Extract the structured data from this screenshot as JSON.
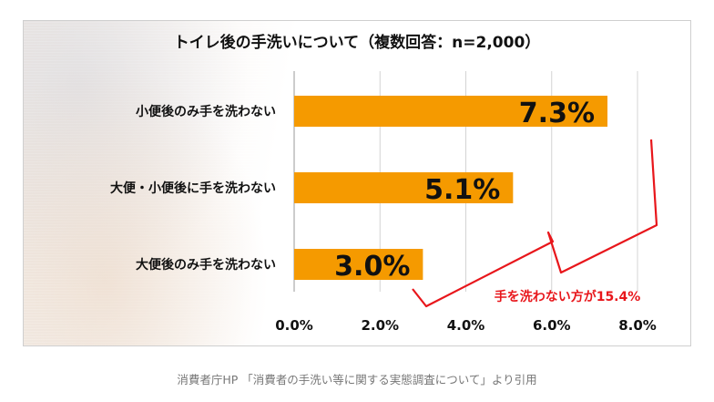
{
  "chart_data": {
    "type": "bar",
    "orientation": "horizontal",
    "title": "トイレ後の手洗いについて（複数回答：n=2,000）",
    "categories": [
      "小便後のみ手を洗わない",
      "大便・小便後に手を洗わない",
      "大便後のみ手を洗わない"
    ],
    "values": [
      7.3,
      5.1,
      3.0
    ],
    "value_labels": [
      "7.3%",
      "5.1%",
      "3.0%"
    ],
    "xlim": [
      0,
      8
    ],
    "x_ticks": [
      "0.0%",
      "2.0%",
      "4.0%",
      "6.0%",
      "8.0%"
    ],
    "grid": "vertical",
    "bar_color": "#f59a00",
    "annotation": {
      "text": "手を洗わない方が15.4%",
      "color": "#e8161b"
    }
  },
  "caption": "消費者庁HP 「消費者の手洗い等に関する実態調査について」より引用"
}
